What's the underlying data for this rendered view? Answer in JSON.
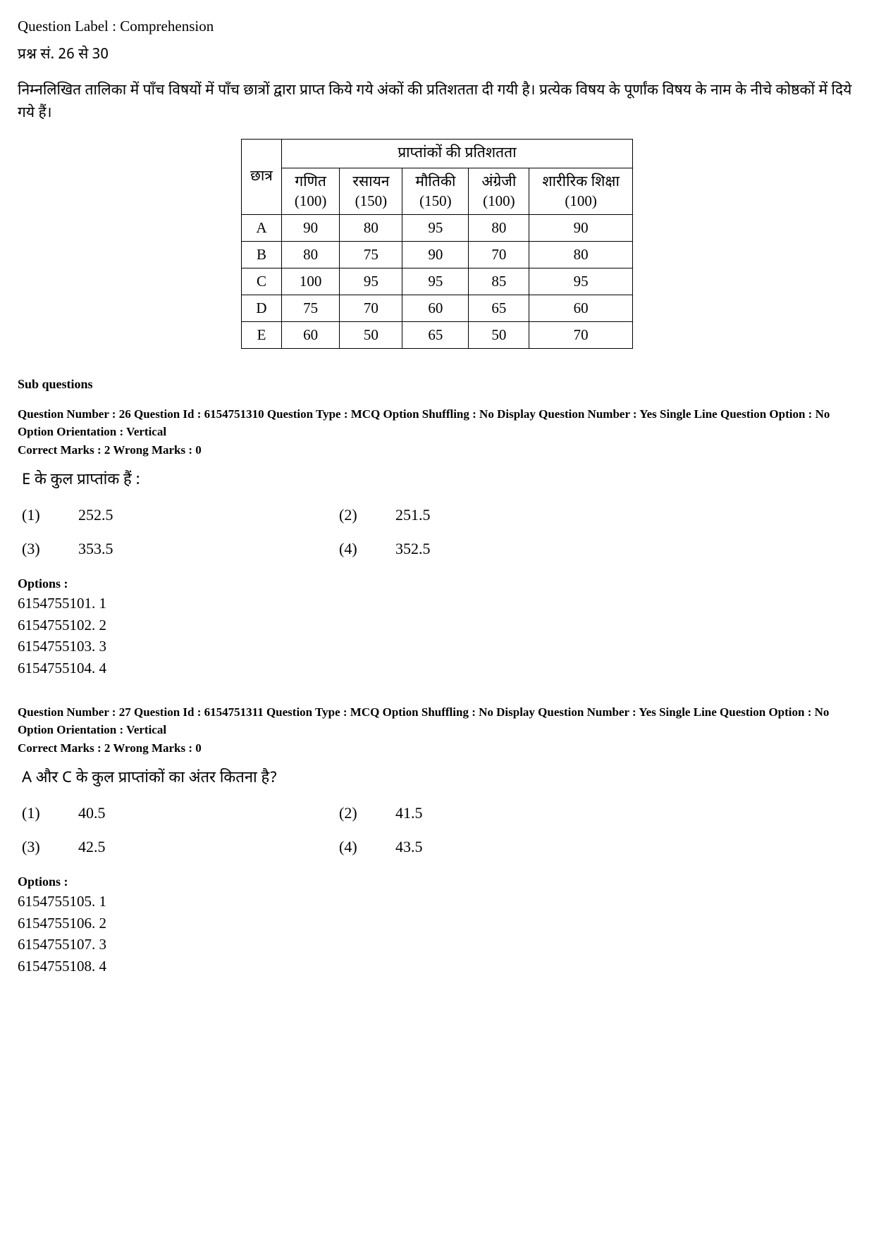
{
  "header": {
    "label_prefix": "Question Label : ",
    "label_value": "Comprehension",
    "range": "प्रश्न सं. 26 से 30",
    "passage": "निम्नलिखित तालिका में पाँच विषयों में पाँच छात्रों द्वारा प्राप्त किये गये अंकों की प्रतिशतता दी गयी है। प्रत्येक विषय के पूर्णांक विषय के नाम के नीचे कोष्ठकों में दिये गये हैं।"
  },
  "table": {
    "super_header": "प्राप्तांकों की प्रतिशतता",
    "row_header": "छात्र",
    "subjects": [
      {
        "name": "गणित",
        "max": "(100)"
      },
      {
        "name": "रसायन",
        "max": "(150)"
      },
      {
        "name": "मौतिकी",
        "max": "(150)"
      },
      {
        "name": "अंग्रेजी",
        "max": "(100)"
      },
      {
        "name": "शारीरिक शिक्षा",
        "max": "(100)"
      }
    ],
    "rows": [
      {
        "student": "A",
        "vals": [
          "90",
          "80",
          "95",
          "80",
          "90"
        ]
      },
      {
        "student": "B",
        "vals": [
          "80",
          "75",
          "90",
          "70",
          "80"
        ]
      },
      {
        "student": "C",
        "vals": [
          "100",
          "95",
          "95",
          "85",
          "95"
        ]
      },
      {
        "student": "D",
        "vals": [
          "75",
          "70",
          "60",
          "65",
          "60"
        ]
      },
      {
        "student": "E",
        "vals": [
          "60",
          "50",
          "65",
          "50",
          "70"
        ]
      }
    ]
  },
  "sub_questions_label": "Sub questions",
  "q26": {
    "meta": "Question Number : 26  Question Id : 6154751310  Question Type : MCQ  Option Shuffling : No  Display Question Number : Yes Single Line Question Option : No  Option Orientation : Vertical",
    "marks": "Correct Marks : 2  Wrong Marks : 0",
    "text": "E के कुल प्राप्तांक हैं :",
    "choices": [
      {
        "n": "(1)",
        "v": "252.5"
      },
      {
        "n": "(2)",
        "v": "251.5"
      },
      {
        "n": "(3)",
        "v": "353.5"
      },
      {
        "n": "(4)",
        "v": "352.5"
      }
    ],
    "options_label": "Options :",
    "options": [
      "6154755101. 1",
      "6154755102. 2",
      "6154755103. 3",
      "6154755104. 4"
    ]
  },
  "q27": {
    "meta": "Question Number : 27  Question Id : 6154751311  Question Type : MCQ  Option Shuffling : No  Display Question Number : Yes Single Line Question Option : No  Option Orientation : Vertical",
    "marks": "Correct Marks : 2  Wrong Marks : 0",
    "text": "A और C के कुल प्राप्तांकों का अंतर कितना है?",
    "choices": [
      {
        "n": "(1)",
        "v": "40.5"
      },
      {
        "n": "(2)",
        "v": "41.5"
      },
      {
        "n": "(3)",
        "v": "42.5"
      },
      {
        "n": "(4)",
        "v": "43.5"
      }
    ],
    "options_label": "Options :",
    "options": [
      "6154755105. 1",
      "6154755106. 2",
      "6154755107. 3",
      "6154755108. 4"
    ]
  }
}
